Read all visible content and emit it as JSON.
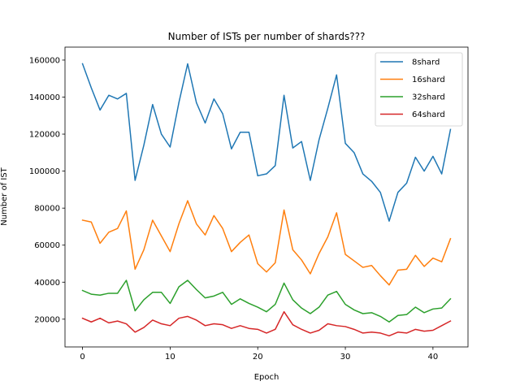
{
  "chart_data": {
    "type": "line",
    "title": "Number of ISTs per number of shards???",
    "xlabel": "Epoch",
    "ylabel": "Number of IST",
    "xlim": [
      -2,
      44
    ],
    "ylim": [
      5000,
      167000
    ],
    "x_ticks": [
      0,
      10,
      20,
      30,
      40
    ],
    "y_ticks": [
      20000,
      40000,
      60000,
      80000,
      100000,
      120000,
      140000,
      160000
    ],
    "legend_position": "top-right",
    "grid": false,
    "x": [
      0,
      1,
      2,
      3,
      4,
      5,
      6,
      7,
      8,
      9,
      10,
      11,
      12,
      13,
      14,
      15,
      16,
      17,
      18,
      19,
      20,
      21,
      22,
      23,
      24,
      25,
      26,
      27,
      28,
      29,
      30,
      31,
      32,
      33,
      34,
      35,
      36,
      37,
      38,
      39,
      40,
      41,
      42
    ],
    "series": [
      {
        "name": "8shard",
        "color": "#1f77b4",
        "values": [
          158000,
          145000,
          133000,
          141000,
          139000,
          142000,
          95000,
          114000,
          136000,
          120000,
          113000,
          137000,
          158000,
          137000,
          126000,
          139000,
          131000,
          112000,
          121000,
          121000,
          97500,
          98500,
          103000,
          141000,
          112500,
          116000,
          95000,
          117000,
          134000,
          152000,
          115000,
          110000,
          98500,
          94500,
          88500,
          73000,
          88500,
          93500,
          107500,
          100000,
          108000,
          98500,
          122500
        ]
      },
      {
        "name": "16shard",
        "color": "#ff7f0e",
        "values": [
          73500,
          72500,
          61000,
          67000,
          69000,
          78500,
          47000,
          57500,
          73500,
          65000,
          56500,
          71500,
          84000,
          71500,
          65500,
          76000,
          69000,
          56500,
          61500,
          65500,
          50000,
          45500,
          50500,
          79000,
          57500,
          52000,
          44500,
          55500,
          64500,
          77500,
          55000,
          51500,
          48000,
          49000,
          43500,
          38500,
          46500,
          47000,
          54500,
          48500,
          53000,
          51000,
          63500
        ]
      },
      {
        "name": "32shard",
        "color": "#2ca02c",
        "values": [
          35500,
          33500,
          33000,
          34000,
          34000,
          41000,
          24500,
          30500,
          34500,
          34500,
          28500,
          37500,
          41000,
          36000,
          31500,
          32500,
          34500,
          28000,
          31000,
          28500,
          26500,
          24000,
          28000,
          39500,
          30500,
          26000,
          23000,
          26500,
          33000,
          35000,
          28000,
          25000,
          23000,
          23500,
          21500,
          18500,
          22000,
          22500,
          26500,
          23500,
          25500,
          26000,
          31000
        ]
      },
      {
        "name": "64shard",
        "color": "#d62728",
        "values": [
          20500,
          18500,
          20500,
          18000,
          19000,
          17500,
          13000,
          15500,
          19500,
          17500,
          16500,
          20500,
          21500,
          19500,
          16500,
          17500,
          17000,
          15000,
          16500,
          15000,
          14500,
          12500,
          14500,
          24000,
          17000,
          14500,
          12500,
          14000,
          17500,
          16500,
          16000,
          14500,
          12500,
          13000,
          12500,
          11000,
          13000,
          12500,
          14500,
          13500,
          14000,
          16500,
          19000
        ]
      }
    ]
  }
}
